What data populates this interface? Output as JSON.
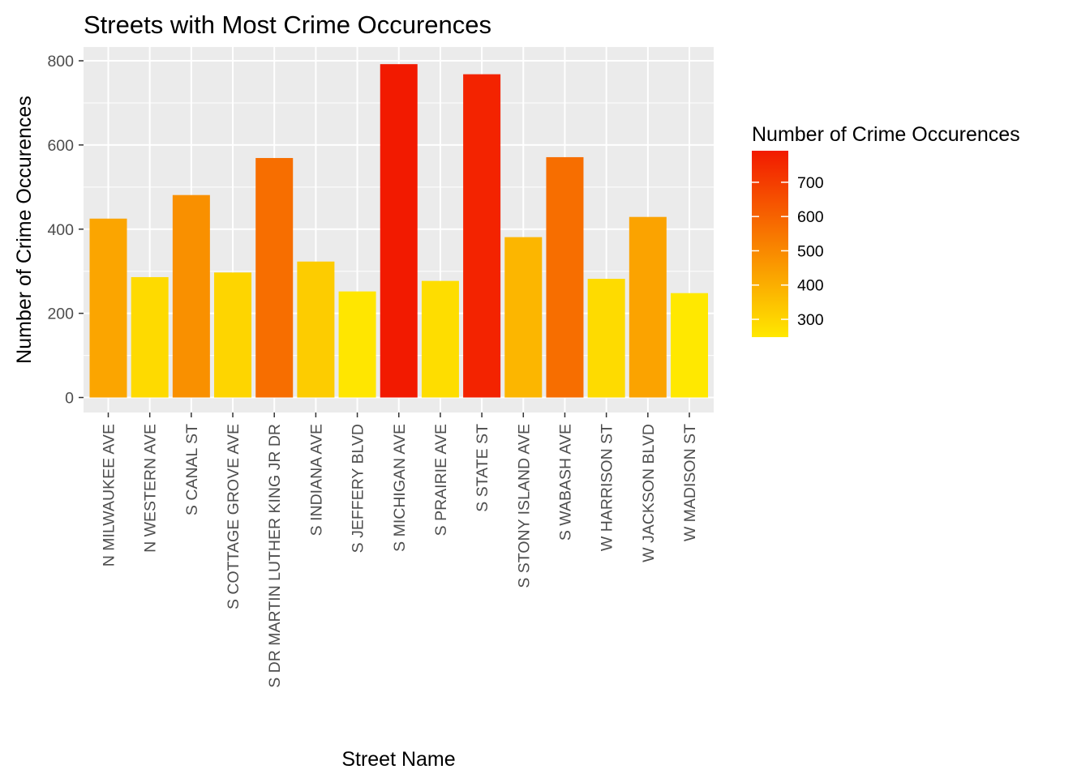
{
  "chart_data": {
    "type": "bar",
    "title": "Streets with Most Crime Occurences",
    "xlabel": "Street Name",
    "ylabel": "Number of Crime Occurences",
    "ylim": [
      0,
      800
    ],
    "yticks": [
      0,
      200,
      400,
      600,
      800
    ],
    "categories": [
      "N MILWAUKEE AVE",
      "N WESTERN AVE",
      "S CANAL ST",
      "S COTTAGE GROVE AVE",
      "S DR MARTIN LUTHER KING JR DR",
      "S INDIANA AVE",
      "S JEFFERY BLVD",
      "S MICHIGAN AVE",
      "S PRAIRIE AVE",
      "S STATE ST",
      "S STONY ISLAND AVE",
      "S WABASH AVE",
      "W HARRISON ST",
      "W JACKSON BLVD",
      "W MADISON ST"
    ],
    "values": [
      425,
      286,
      481,
      297,
      569,
      323,
      252,
      792,
      277,
      768,
      381,
      571,
      282,
      429,
      248
    ],
    "grid": true,
    "legend": {
      "title": "Number of Crime Occurences",
      "placement": "right",
      "ticks": [
        300,
        400,
        500,
        600,
        700
      ],
      "low_color": "#FFE800",
      "high_color": "#F21A00"
    }
  }
}
